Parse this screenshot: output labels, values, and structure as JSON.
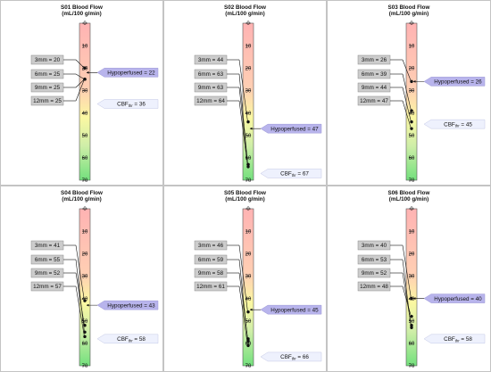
{
  "chart_data": [
    {
      "type": "scale",
      "title": "S01 Blood Flow",
      "subtitle": "(mL/100 g/min)",
      "axis": {
        "min": 0,
        "max": 70,
        "ticks": [
          "0",
          "10",
          "20",
          "30",
          "40",
          "50",
          "60",
          "70"
        ]
      },
      "measurements": [
        {
          "label": "3mm = 20",
          "value": 20
        },
        {
          "label": "6mm = 25",
          "value": 25
        },
        {
          "label": "9mm = 25",
          "value": 25
        },
        {
          "label": "12mm = 25",
          "value": 25
        }
      ],
      "hypoperfused": {
        "label": "Hypoperfused = 22",
        "value": 22
      },
      "cbf": {
        "prefix": "CBF",
        "sub": "thr",
        "value_text": " = 36",
        "value": 36
      }
    },
    {
      "type": "scale",
      "title": "S02 Blood Flow",
      "subtitle": "(mL/100 g/min)",
      "axis": {
        "min": 0,
        "max": 70,
        "ticks": [
          "0",
          "10",
          "20",
          "30",
          "40",
          "50",
          "60",
          "70"
        ]
      },
      "measurements": [
        {
          "label": "3mm = 44",
          "value": 44
        },
        {
          "label": "6mm = 63",
          "value": 63
        },
        {
          "label": "9mm = 63",
          "value": 63
        },
        {
          "label": "12mm = 64",
          "value": 64
        }
      ],
      "hypoperfused": {
        "label": "Hypoperfused = 47",
        "value": 47
      },
      "cbf": {
        "prefix": "CBF",
        "sub": "thr",
        "value_text": " = 67",
        "value": 67
      }
    },
    {
      "type": "scale",
      "title": "S03 Blood Flow",
      "subtitle": "(mL/100 g/min)",
      "axis": {
        "min": 0,
        "max": 70,
        "ticks": [
          "0",
          "10",
          "20",
          "30",
          "40",
          "50",
          "60",
          "70"
        ]
      },
      "measurements": [
        {
          "label": "3mm = 26",
          "value": 26
        },
        {
          "label": "6mm = 39",
          "value": 39
        },
        {
          "label": "9mm = 44",
          "value": 44
        },
        {
          "label": "12mm = 47",
          "value": 47
        }
      ],
      "hypoperfused": {
        "label": "Hypoperfused = 26",
        "value": 26
      },
      "cbf": {
        "prefix": "CBF",
        "sub": "thr",
        "value_text": " = 45",
        "value": 45
      }
    },
    {
      "type": "scale",
      "title": "S04 Blood Flow",
      "subtitle": "(mL/100 g/min)",
      "axis": {
        "min": 0,
        "max": 70,
        "ticks": [
          "0",
          "10",
          "20",
          "30",
          "40",
          "50",
          "60",
          "70"
        ]
      },
      "measurements": [
        {
          "label": "3mm = 41",
          "value": 41
        },
        {
          "label": "6mm = 55",
          "value": 55
        },
        {
          "label": "9mm = 52",
          "value": 52
        },
        {
          "label": "12mm = 57",
          "value": 57
        }
      ],
      "hypoperfused": {
        "label": "Hypoperfused = 43",
        "value": 43
      },
      "cbf": {
        "prefix": "CBF",
        "sub": "thr",
        "value_text": " = 58",
        "value": 58
      }
    },
    {
      "type": "scale",
      "title": "S05 Blood Flow",
      "subtitle": "(mL/100 g/min)",
      "axis": {
        "min": 0,
        "max": 70,
        "ticks": [
          "0",
          "10",
          "20",
          "30",
          "40",
          "50",
          "60",
          "70"
        ]
      },
      "measurements": [
        {
          "label": "3mm = 46",
          "value": 46
        },
        {
          "label": "6mm = 59",
          "value": 59
        },
        {
          "label": "9mm = 58",
          "value": 58
        },
        {
          "label": "12mm = 61",
          "value": 61
        }
      ],
      "hypoperfused": {
        "label": "Hypoperfused = 45",
        "value": 45
      },
      "cbf": {
        "prefix": "CBF",
        "sub": "thr",
        "value_text": " = 66",
        "value": 66
      }
    },
    {
      "type": "scale",
      "title": "S06 Blood Flow",
      "subtitle": "(mL/100 g/min)",
      "axis": {
        "min": 0,
        "max": 70,
        "ticks": [
          "0",
          "10",
          "20",
          "30",
          "40",
          "50",
          "60",
          "70"
        ]
      },
      "measurements": [
        {
          "label": "3mm = 40",
          "value": 40
        },
        {
          "label": "6mm = 53",
          "value": 53
        },
        {
          "label": "9mm = 52",
          "value": 52
        },
        {
          "label": "12mm = 48",
          "value": 48
        }
      ],
      "hypoperfused": {
        "label": "Hypoperfused = 40",
        "value": 40
      },
      "cbf": {
        "prefix": "CBF",
        "sub": "thr",
        "value_text": " = 58",
        "value": 58
      }
    }
  ]
}
